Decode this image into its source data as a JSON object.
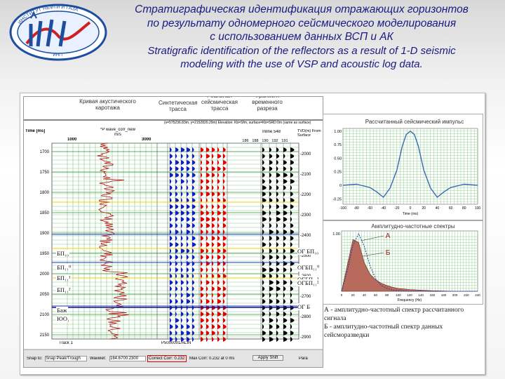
{
  "title": {
    "ru_lines": [
      "Стратиграфическая идентификация отражающих горизонтов",
      "по результату одномерного сейсмического моделирования",
      "с использованием данных ВСП и АК"
    ],
    "en_lines": [
      "Stratigrafic identification of the reflectors as a result of 1-D seismic",
      "modeling with the use of VSP and acoustic log data."
    ]
  },
  "colors": {
    "title": "#1a1a80",
    "grid": "#6fbf6f",
    "trace_red": "#e00000",
    "trace_blue": "#1020c0",
    "curve": "#3a6ab0"
  },
  "seismic_panel": {
    "column_headers": {
      "acoustic_log": "Кривая акустического каротажа",
      "synthetic": "Синтетическая трасса",
      "real": "Реальная сейсмическая трасса",
      "fragment": "Фрагмент временного разреза"
    },
    "time_header": "Time [ms]",
    "log_curve_name": "*P wave_corr_new",
    "log_units": "m/s",
    "log_scale": [
      "1000",
      "3000"
    ],
    "inline_label": "Inline 548",
    "traces": [
      "186",
      "188",
      "190",
      "192",
      "191"
    ],
    "tvd_header": "TVD(m) From Surface",
    "info_line": "(x=575236.83m, y=2152820.29m)  Elevation: Kb=Sfm, surface=Kb=SRD:0m (same as surface)",
    "time_ticks": [
      "1700",
      "1750",
      "1800",
      "1850",
      "1900",
      "1950",
      "2000",
      "2050",
      "2100",
      "2150"
    ],
    "depth_ticks": [
      "2000",
      "2100",
      "2200",
      "2300",
      "2400",
      "2500",
      "2600",
      "2700",
      "2800",
      "2900"
    ],
    "left_horizons": [
      "БП₁₀",
      "БП₁₁⁰",
      "БП₁₁¹",
      "БП₁₁²",
      "Баж",
      "ЮО₁"
    ],
    "right_horizons": [
      "ОГ БП₁₀",
      "ОГБП₁₁⁰",
      "ОГБП₁₁¹",
      "ОГБП₁₁²",
      "ОГ Б"
    ],
    "track_label": "Track 1",
    "well_label": "P5000001/ALIN",
    "status_bar": {
      "snap": "Snap to:",
      "snap_value": "Snap Peak/Trough",
      "wavelet_label": "Wavelet:",
      "wavelet_value": "164.6700.2300",
      "correct_corr": "Correct Corr: 0.232",
      "max_corr": "Max Corr: 0.232 at 0 ms",
      "apply": "Apply Shift",
      "para": "Para"
    }
  },
  "impulse_chart": {
    "title": "Рассчитанный сейсмический импульс",
    "yticks": [
      "1.00",
      "0.75",
      "0.50",
      "0.25",
      "0",
      "-0.25"
    ],
    "xticks": [
      "-100",
      "-80",
      "-60",
      "-40",
      "-20",
      "0",
      "20",
      "40",
      "60",
      "80",
      "100"
    ],
    "xlabel": "Time (ms)",
    "chart_data": {
      "type": "line",
      "x": [
        -100,
        -80,
        -60,
        -50,
        -40,
        -30,
        -20,
        -12,
        -6,
        0,
        6,
        12,
        20,
        30,
        40,
        50,
        60,
        80,
        100
      ],
      "values": [
        0,
        0.02,
        -0.04,
        -0.12,
        -0.22,
        -0.05,
        0.28,
        0.72,
        0.94,
        1.0,
        0.94,
        0.72,
        0.28,
        -0.05,
        -0.22,
        -0.12,
        -0.04,
        0.02,
        0
      ],
      "ylim": [
        -0.35,
        1.05
      ]
    }
  },
  "spectrum_chart": {
    "title": "Амплитудно-частотные спектры",
    "label_a": "А",
    "label_b": "Б",
    "ytick_top": "1.00",
    "xticks": [
      "0",
      "20",
      "40",
      "60",
      "80",
      "100",
      "120",
      "140",
      "160",
      "180",
      "200",
      "220",
      "240"
    ],
    "xlabel": "Frequency (Hz)",
    "chart_data": {
      "type": "area",
      "x": [
        0,
        10,
        20,
        30,
        40,
        50,
        60,
        70,
        80,
        90,
        100,
        120,
        140,
        160,
        200,
        240
      ],
      "series": [
        {
          "values": [
            0,
            0.35,
            0.8,
            1.0,
            0.78,
            0.45,
            0.22,
            0.1,
            0.05,
            0.02,
            0.01,
            0,
            0,
            0,
            0,
            0
          ]
        },
        {
          "values": [
            0,
            0.45,
            0.9,
            0.85,
            0.5,
            0.3,
            0.2,
            0.14,
            0.1,
            0.07,
            0.05,
            0.03,
            0.02,
            0.01,
            0,
            0
          ]
        }
      ]
    }
  },
  "legend": {
    "a": "А - амплитудно-частотный спектр рассчитанного сигнала",
    "b": "Б - амплитудно-частотный спектр данных сейсморазведки"
  }
}
